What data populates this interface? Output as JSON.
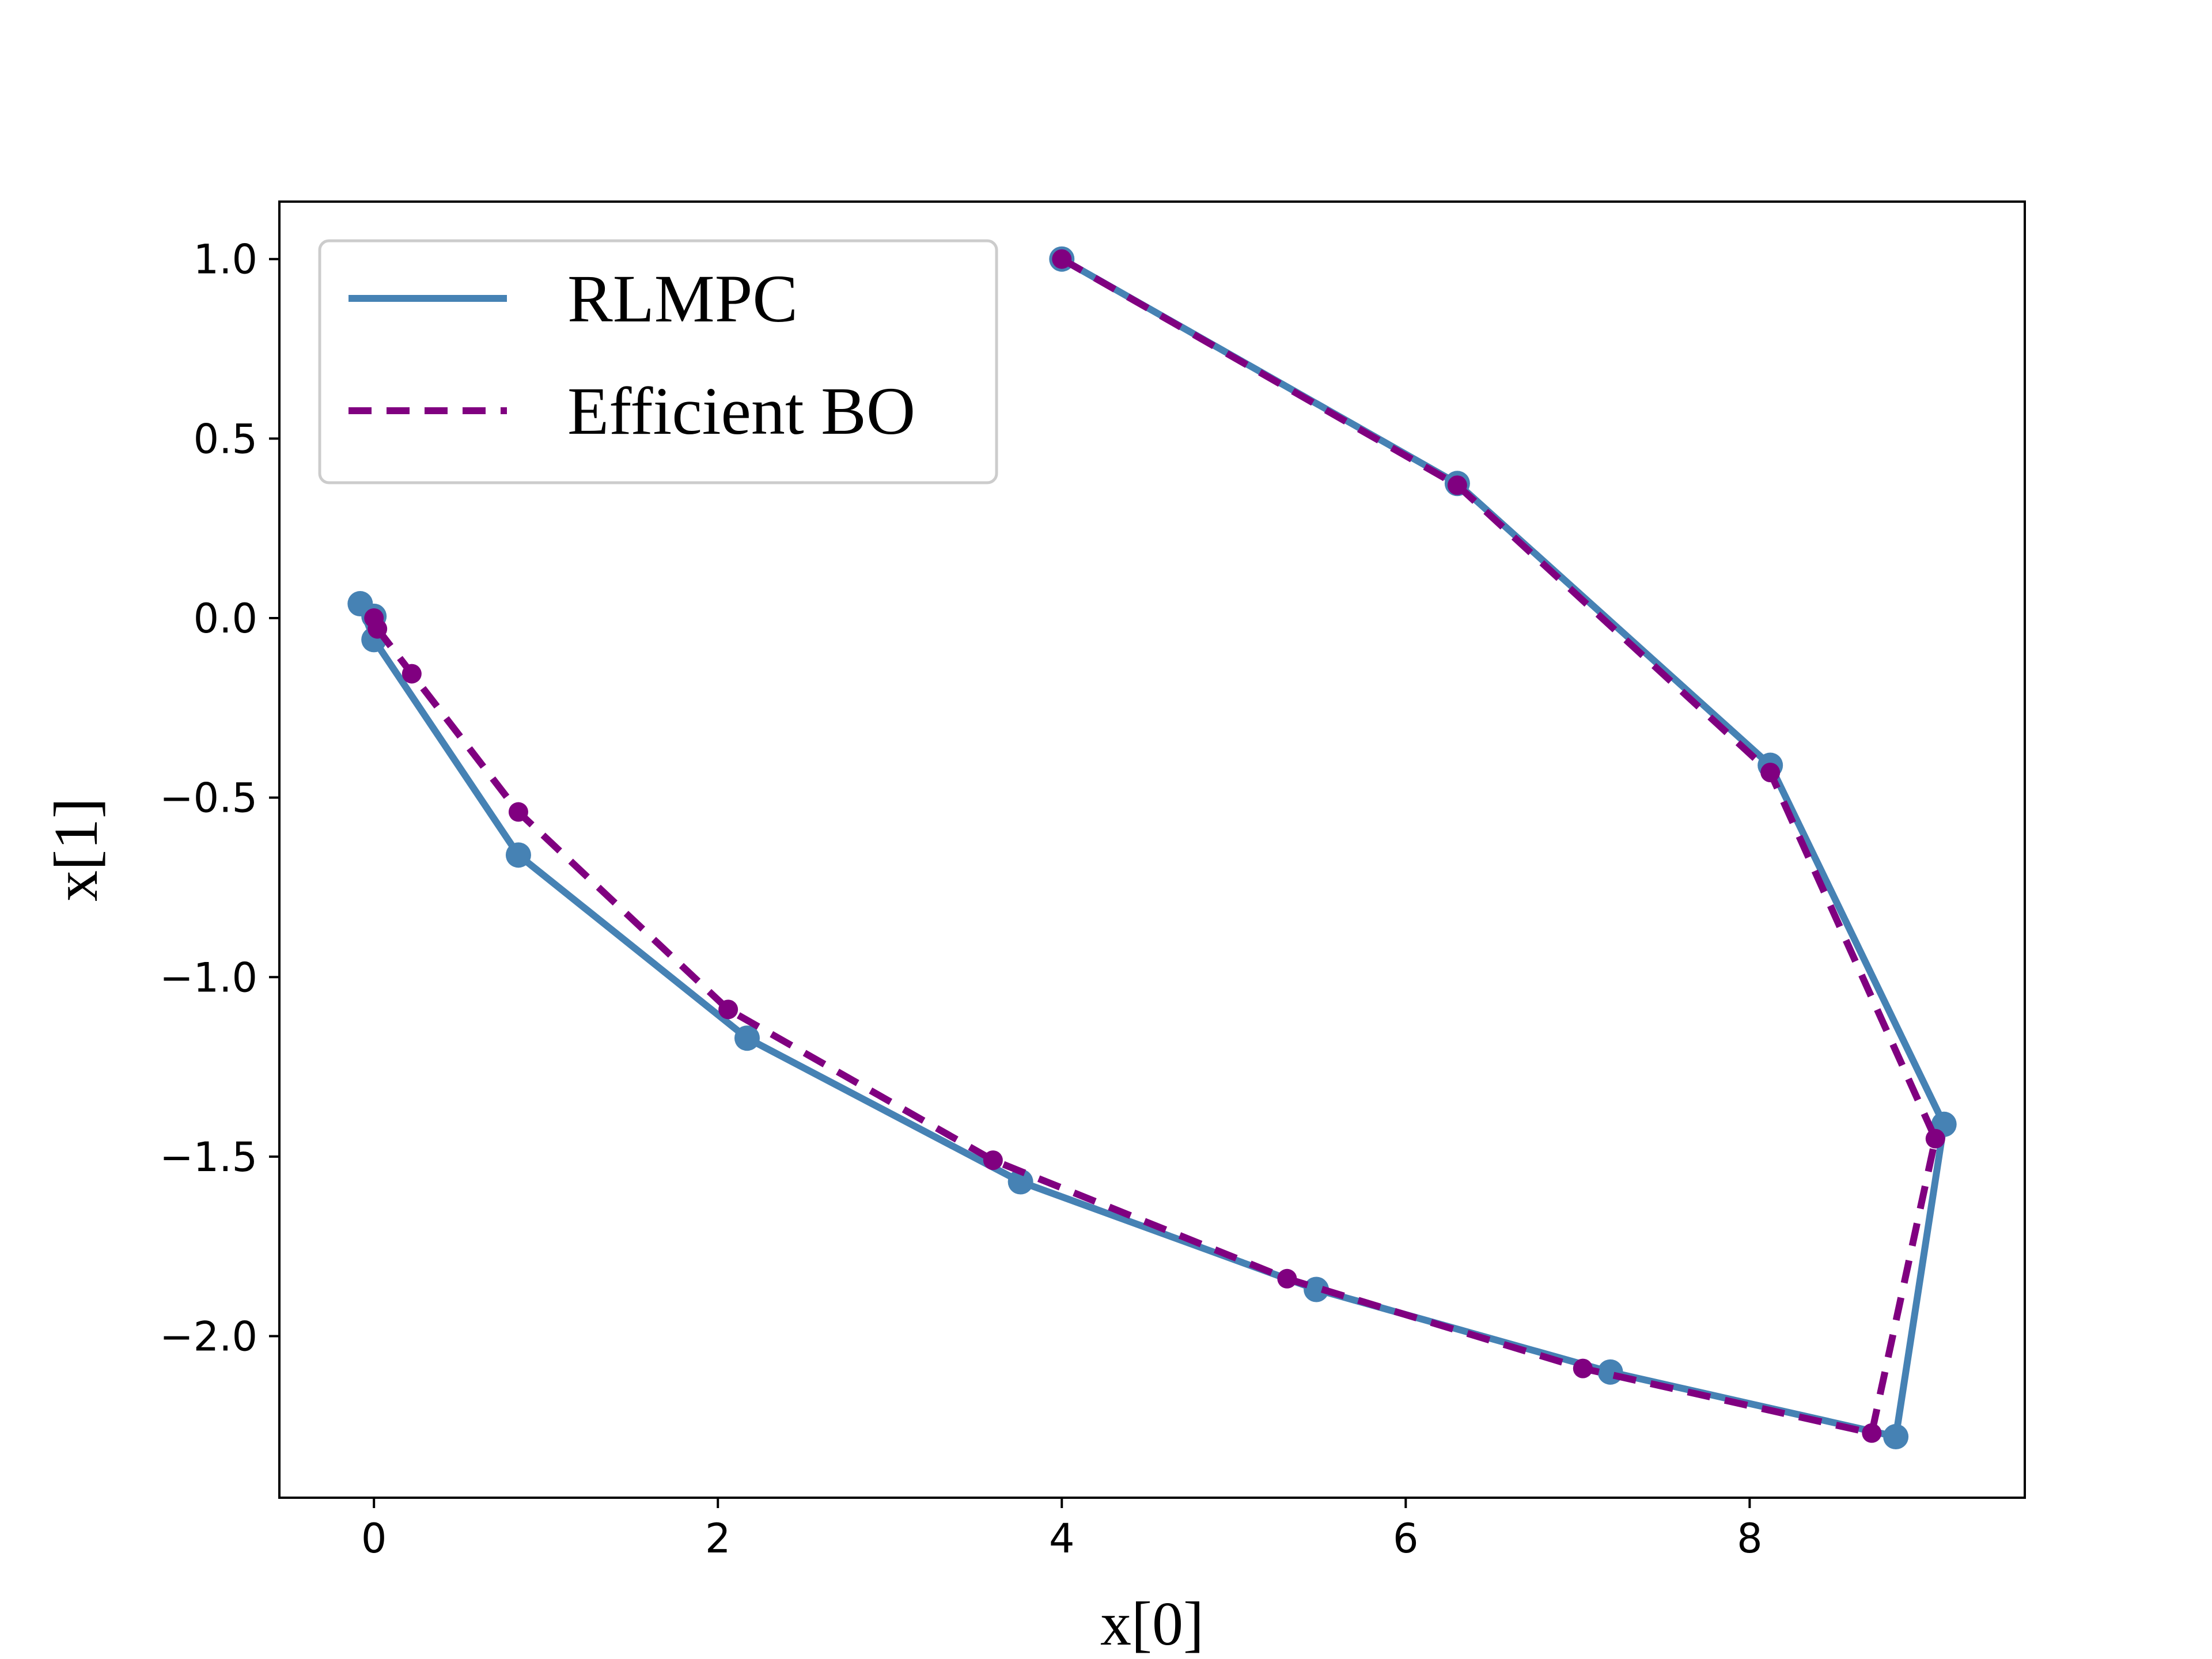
{
  "chart_data": {
    "type": "line",
    "xlabel": "x[0]",
    "ylabel": "x[1]",
    "xlim": [
      -0.55,
      9.6
    ],
    "ylim": [
      -2.45,
      1.16
    ],
    "x_ticks": [
      0,
      2,
      4,
      6,
      8
    ],
    "x_tick_labels": [
      "0",
      "2",
      "4",
      "6",
      "8"
    ],
    "y_ticks": [
      1.0,
      0.5,
      0.0,
      -0.5,
      -1.0,
      -1.5,
      -2.0
    ],
    "y_tick_labels": [
      "1.0",
      "0.5",
      "0.0",
      "−0.5",
      "−1.0",
      "−1.5",
      "−2.0"
    ],
    "grid": false,
    "legend_position": "top-left",
    "series": [
      {
        "name": "RLMPC",
        "color": "#4682b4",
        "line_style": "solid",
        "marker": "circle",
        "x": [
          4.0,
          6.3,
          8.12,
          9.13,
          8.85,
          7.19,
          5.48,
          3.76,
          2.17,
          0.84,
          0.0,
          -0.08,
          0.0
        ],
        "y": [
          1.0,
          0.375,
          -0.41,
          -1.41,
          -2.28,
          -2.1,
          -1.87,
          -1.57,
          -1.17,
          -0.66,
          -0.06,
          0.04,
          0.005
        ]
      },
      {
        "name": "Efficient BO",
        "color": "#800080",
        "line_style": "dashed",
        "marker": "circle",
        "x": [
          4.0,
          6.3,
          8.12,
          9.08,
          8.71,
          7.03,
          5.31,
          3.6,
          2.06,
          0.84,
          0.22,
          0.02,
          0.0
        ],
        "y": [
          1.0,
          0.37,
          -0.43,
          -1.45,
          -2.27,
          -2.09,
          -1.84,
          -1.51,
          -1.09,
          -0.54,
          -0.155,
          -0.03,
          0.0
        ]
      }
    ]
  }
}
